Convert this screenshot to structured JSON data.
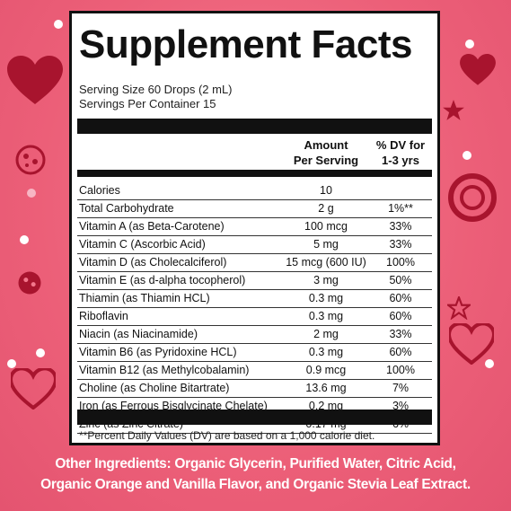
{
  "panel": {
    "title": "Supplement Facts",
    "serving_size": "Serving Size 60 Drops (2 mL)",
    "servings_per_container": "Servings Per Container 15",
    "col_amount_line1": "Amount",
    "col_amount_line2": "Per Serving",
    "col_dv_line1": "% DV for",
    "col_dv_line2": "1-3 yrs",
    "rows": [
      {
        "name": "Calories",
        "amount": "10",
        "dv": ""
      },
      {
        "name": "Total Carbohydrate",
        "amount": "2 g",
        "dv": "1%**"
      },
      {
        "name": "Vitamin A (as Beta-Carotene)",
        "amount": "100 mcg",
        "dv": "33%"
      },
      {
        "name": "Vitamin C (Ascorbic Acid)",
        "amount": "5 mg",
        "dv": "33%"
      },
      {
        "name": "Vitamin D (as Cholecalciferol)",
        "amount": "15 mcg (600 IU)",
        "dv": "100%"
      },
      {
        "name": "Vitamin E (as d-alpha tocopherol)",
        "amount": "3 mg",
        "dv": "50%"
      },
      {
        "name": "Thiamin (as Thiamin HCL)",
        "amount": "0.3 mg",
        "dv": "60%"
      },
      {
        "name": "Riboflavin",
        "amount": "0.3 mg",
        "dv": "60%"
      },
      {
        "name": "Niacin (as Niacinamide)",
        "amount": "2 mg",
        "dv": "33%"
      },
      {
        "name": "Vitamin B6 (as Pyridoxine HCL)",
        "amount": "0.3 mg",
        "dv": "60%"
      },
      {
        "name": "Vitamin B12 (as Methylcobalamin)",
        "amount": "0.9 mcg",
        "dv": "100%"
      },
      {
        "name": "Choline (as Choline Bitartrate)",
        "amount": "13.6 mg",
        "dv": "7%"
      },
      {
        "name": "Iron (as Ferrous Bisglycinate Chelate)",
        "amount": "0.2 mg",
        "dv": "3%"
      },
      {
        "name": "Zinc (as Zinc Citrate)",
        "amount": "0.17 mg",
        "dv": "6%"
      }
    ],
    "footnote": "**Percent Daily Values (DV) are based on a 1,000 calorie diet."
  },
  "other_ingredients": {
    "line1": "Other Ingredients: Organic Glycerin, Purified Water, Citric Acid,",
    "line2": "Organic Orange and Vanilla Flavor, and Organic Stevia Leaf Extract."
  },
  "colors": {
    "background": "#ec5f78",
    "panel": "#ffffff",
    "rule": "#111111",
    "decor_dark": "#a8142e"
  },
  "decorations": [
    "heart-icon",
    "star-icon",
    "ladybug-icon",
    "dot-icon"
  ]
}
